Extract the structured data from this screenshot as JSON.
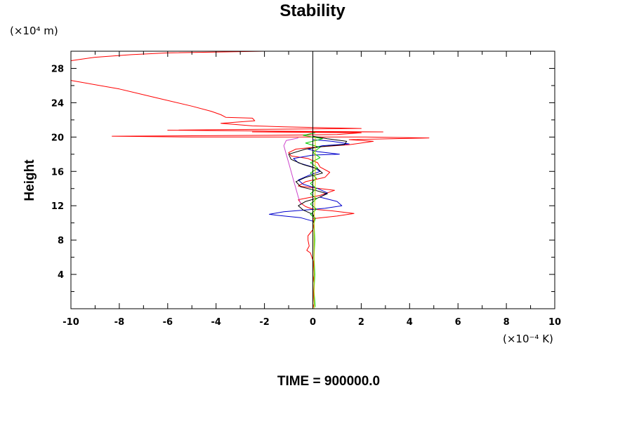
{
  "chart_data": {
    "type": "line",
    "title": "Stability",
    "ylabel": "Height",
    "xunit": "(×10⁻⁴ K)",
    "yunit": "(×10⁴ m)",
    "footer": "TIME = 900000.0",
    "xlim": [
      -10,
      10
    ],
    "ylim": [
      0,
      30
    ],
    "xticks": [
      -10,
      -8,
      -6,
      -4,
      -2,
      0,
      2,
      4,
      6,
      8,
      10
    ],
    "yticks": [
      4,
      8,
      12,
      16,
      20,
      24,
      28
    ],
    "grid": false,
    "colors": {
      "axes": "#000000",
      "zero_line": "#000000"
    },
    "series": [
      {
        "color": "#ff0000",
        "points": [
          [
            0.05,
            0.1
          ],
          [
            0.0,
            0.6
          ],
          [
            0.02,
            1.5
          ],
          [
            0.0,
            3.0
          ],
          [
            0.05,
            4.0
          ],
          [
            0.02,
            5.5
          ],
          [
            -0.1,
            6.5
          ],
          [
            -0.25,
            6.8
          ],
          [
            -0.15,
            7.3
          ],
          [
            -0.2,
            8.0
          ],
          [
            -0.2,
            8.5
          ],
          [
            0.0,
            9.2
          ],
          [
            0.05,
            10.0
          ],
          [
            0.0,
            10.5
          ],
          [
            1.0,
            10.8
          ],
          [
            1.7,
            11.1
          ],
          [
            0.8,
            11.4
          ],
          [
            0.0,
            11.6
          ],
          [
            -0.3,
            11.9
          ],
          [
            -0.5,
            12.3
          ],
          [
            -0.6,
            12.7
          ],
          [
            0.3,
            13.2
          ],
          [
            0.9,
            13.8
          ],
          [
            0.0,
            14.1
          ],
          [
            -0.6,
            14.3
          ],
          [
            -0.3,
            14.8
          ],
          [
            0.5,
            15.3
          ],
          [
            0.7,
            15.9
          ],
          [
            0.3,
            16.5
          ],
          [
            0.2,
            17.0
          ],
          [
            -0.2,
            17.5
          ],
          [
            -0.9,
            17.8
          ],
          [
            -1.0,
            18.2
          ],
          [
            -0.7,
            18.6
          ],
          [
            0.0,
            18.8
          ],
          [
            1.5,
            19.1
          ],
          [
            2.5,
            19.5
          ],
          [
            1.5,
            19.7
          ],
          [
            4.8,
            19.9
          ],
          [
            2.2,
            20.0
          ],
          [
            -5.0,
            20.0
          ],
          [
            -8.3,
            20.1
          ],
          [
            -2.0,
            20.2
          ],
          [
            1.0,
            20.3
          ],
          [
            2.0,
            20.5
          ],
          [
            -2.5,
            20.6
          ],
          [
            2.9,
            20.6
          ],
          [
            -2.0,
            20.7
          ],
          [
            -6.0,
            20.8
          ],
          [
            -2.0,
            20.9
          ],
          [
            2.0,
            21.0
          ],
          [
            -1.2,
            21.2
          ],
          [
            -2.5,
            21.3
          ],
          [
            -3.8,
            21.6
          ],
          [
            -2.4,
            21.9
          ],
          [
            -2.5,
            22.2
          ],
          [
            -3.6,
            22.3
          ],
          [
            -3.8,
            22.6
          ],
          [
            -4.2,
            23.0
          ],
          [
            -5.0,
            23.6
          ],
          [
            -6.5,
            24.6
          ],
          [
            -8.0,
            25.6
          ],
          [
            -10.0,
            26.6
          ]
        ]
      },
      {
        "color": "#ff0000",
        "points": [
          [
            -10.0,
            28.9
          ],
          [
            -9.0,
            29.3
          ],
          [
            -7.5,
            29.6
          ],
          [
            -6.0,
            29.8
          ],
          [
            -2.0,
            30.0
          ]
        ]
      },
      {
        "color": "#0000cc",
        "points": [
          [
            0.0,
            9.5
          ],
          [
            0.0,
            10.2
          ],
          [
            -0.5,
            10.6
          ],
          [
            -1.5,
            10.9
          ],
          [
            -1.8,
            11.0
          ],
          [
            -1.2,
            11.3
          ],
          [
            -0.3,
            11.5
          ],
          [
            0.5,
            11.7
          ],
          [
            1.2,
            12.0
          ],
          [
            1.0,
            12.5
          ],
          [
            0.3,
            13.0
          ],
          [
            0.6,
            13.5
          ],
          [
            0.2,
            14.0
          ],
          [
            -0.4,
            14.5
          ],
          [
            -0.6,
            15.0
          ],
          [
            -0.2,
            15.5
          ],
          [
            0.3,
            16.0
          ],
          [
            0.0,
            16.5
          ],
          [
            -0.6,
            17.0
          ],
          [
            -0.8,
            17.5
          ],
          [
            0.0,
            17.9
          ],
          [
            1.1,
            18.0
          ],
          [
            0.2,
            18.3
          ],
          [
            -0.2,
            18.6
          ],
          [
            0.4,
            19.0
          ],
          [
            1.5,
            19.2
          ],
          [
            0.8,
            19.5
          ],
          [
            0.0,
            19.7
          ],
          [
            0.0,
            20.5
          ]
        ]
      },
      {
        "color": "#000000",
        "points": [
          [
            0.0,
            8.8
          ],
          [
            0.0,
            10.0
          ],
          [
            0.1,
            10.5
          ],
          [
            0.0,
            11.0
          ],
          [
            -0.4,
            11.5
          ],
          [
            -0.6,
            12.0
          ],
          [
            -0.3,
            12.5
          ],
          [
            0.2,
            12.9
          ],
          [
            0.6,
            13.4
          ],
          [
            0.1,
            13.8
          ],
          [
            -0.5,
            14.2
          ],
          [
            -0.7,
            14.8
          ],
          [
            -0.3,
            15.3
          ],
          [
            0.4,
            15.8
          ],
          [
            0.2,
            16.3
          ],
          [
            -0.4,
            16.8
          ],
          [
            -0.9,
            17.4
          ],
          [
            -1.0,
            18.0
          ],
          [
            -0.3,
            18.6
          ],
          [
            0.4,
            18.9
          ],
          [
            1.3,
            19.1
          ],
          [
            1.4,
            19.5
          ],
          [
            0.6,
            19.8
          ],
          [
            0.0,
            20.1
          ]
        ]
      },
      {
        "color": "#cc44cc",
        "points": [
          [
            -0.5,
            12.2
          ],
          [
            -0.6,
            13.0
          ],
          [
            -0.7,
            14.0
          ],
          [
            -0.8,
            15.0
          ],
          [
            -0.9,
            16.0
          ],
          [
            -1.0,
            17.0
          ],
          [
            -1.1,
            18.0
          ],
          [
            -1.2,
            19.0
          ],
          [
            -1.1,
            19.6
          ],
          [
            -0.6,
            19.9
          ]
        ]
      },
      {
        "color": "#00cc00",
        "points": [
          [
            0.1,
            0.2
          ],
          [
            0.05,
            2.0
          ],
          [
            0.08,
            4.0
          ],
          [
            0.05,
            6.0
          ],
          [
            0.08,
            8.0
          ],
          [
            0.05,
            10.0
          ],
          [
            0.1,
            10.5
          ],
          [
            -0.1,
            11.0
          ],
          [
            0.15,
            11.6
          ],
          [
            -0.1,
            12.2
          ],
          [
            0.15,
            12.8
          ],
          [
            -0.1,
            13.4
          ],
          [
            0.15,
            14.0
          ],
          [
            -0.1,
            14.6
          ],
          [
            0.15,
            15.2
          ],
          [
            -0.1,
            15.8
          ],
          [
            0.2,
            16.4
          ],
          [
            -0.1,
            17.0
          ],
          [
            0.3,
            17.6
          ],
          [
            0.0,
            18.2
          ],
          [
            0.3,
            18.8
          ],
          [
            -0.3,
            19.3
          ],
          [
            0.4,
            19.8
          ],
          [
            -0.4,
            20.2
          ],
          [
            0.1,
            20.5
          ]
        ]
      },
      {
        "color": "#d4c800",
        "points": [
          [
            0.05,
            0.0
          ],
          [
            0.05,
            10.0
          ],
          [
            0.1,
            14.0
          ],
          [
            0.1,
            20.0
          ]
        ]
      }
    ]
  }
}
